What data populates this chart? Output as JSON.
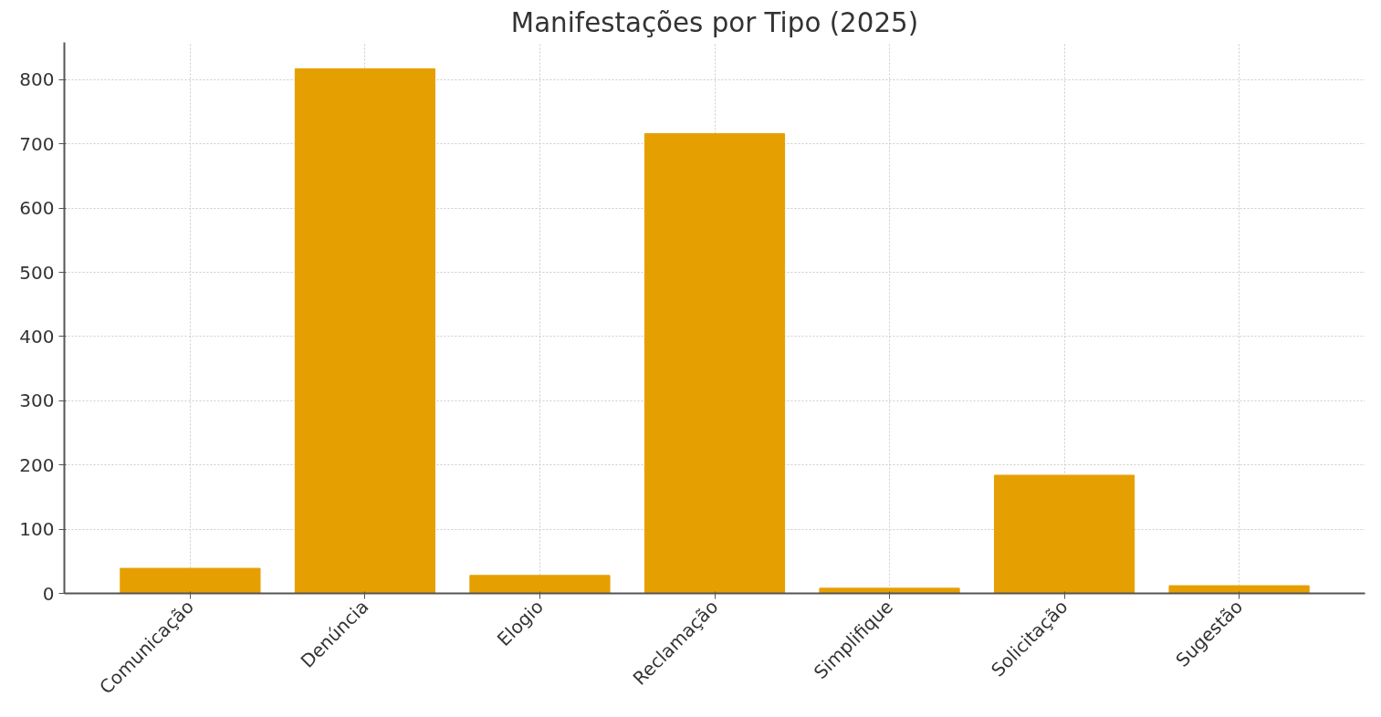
{
  "chart_data": {
    "type": "bar",
    "title": "Manifestações por Tipo (2025)",
    "categories": [
      "Comunicação",
      "Denúncia",
      "Elogio",
      "Reclamação",
      "Simplifique",
      "Solicitação",
      "Sugestão"
    ],
    "values": [
      39,
      817,
      28,
      716,
      8,
      184,
      12
    ],
    "color": "#e69f00",
    "ylim": [
      0,
      858
    ],
    "yticks": [
      0,
      100,
      200,
      300,
      400,
      500,
      600,
      700,
      800
    ],
    "grid": true
  }
}
